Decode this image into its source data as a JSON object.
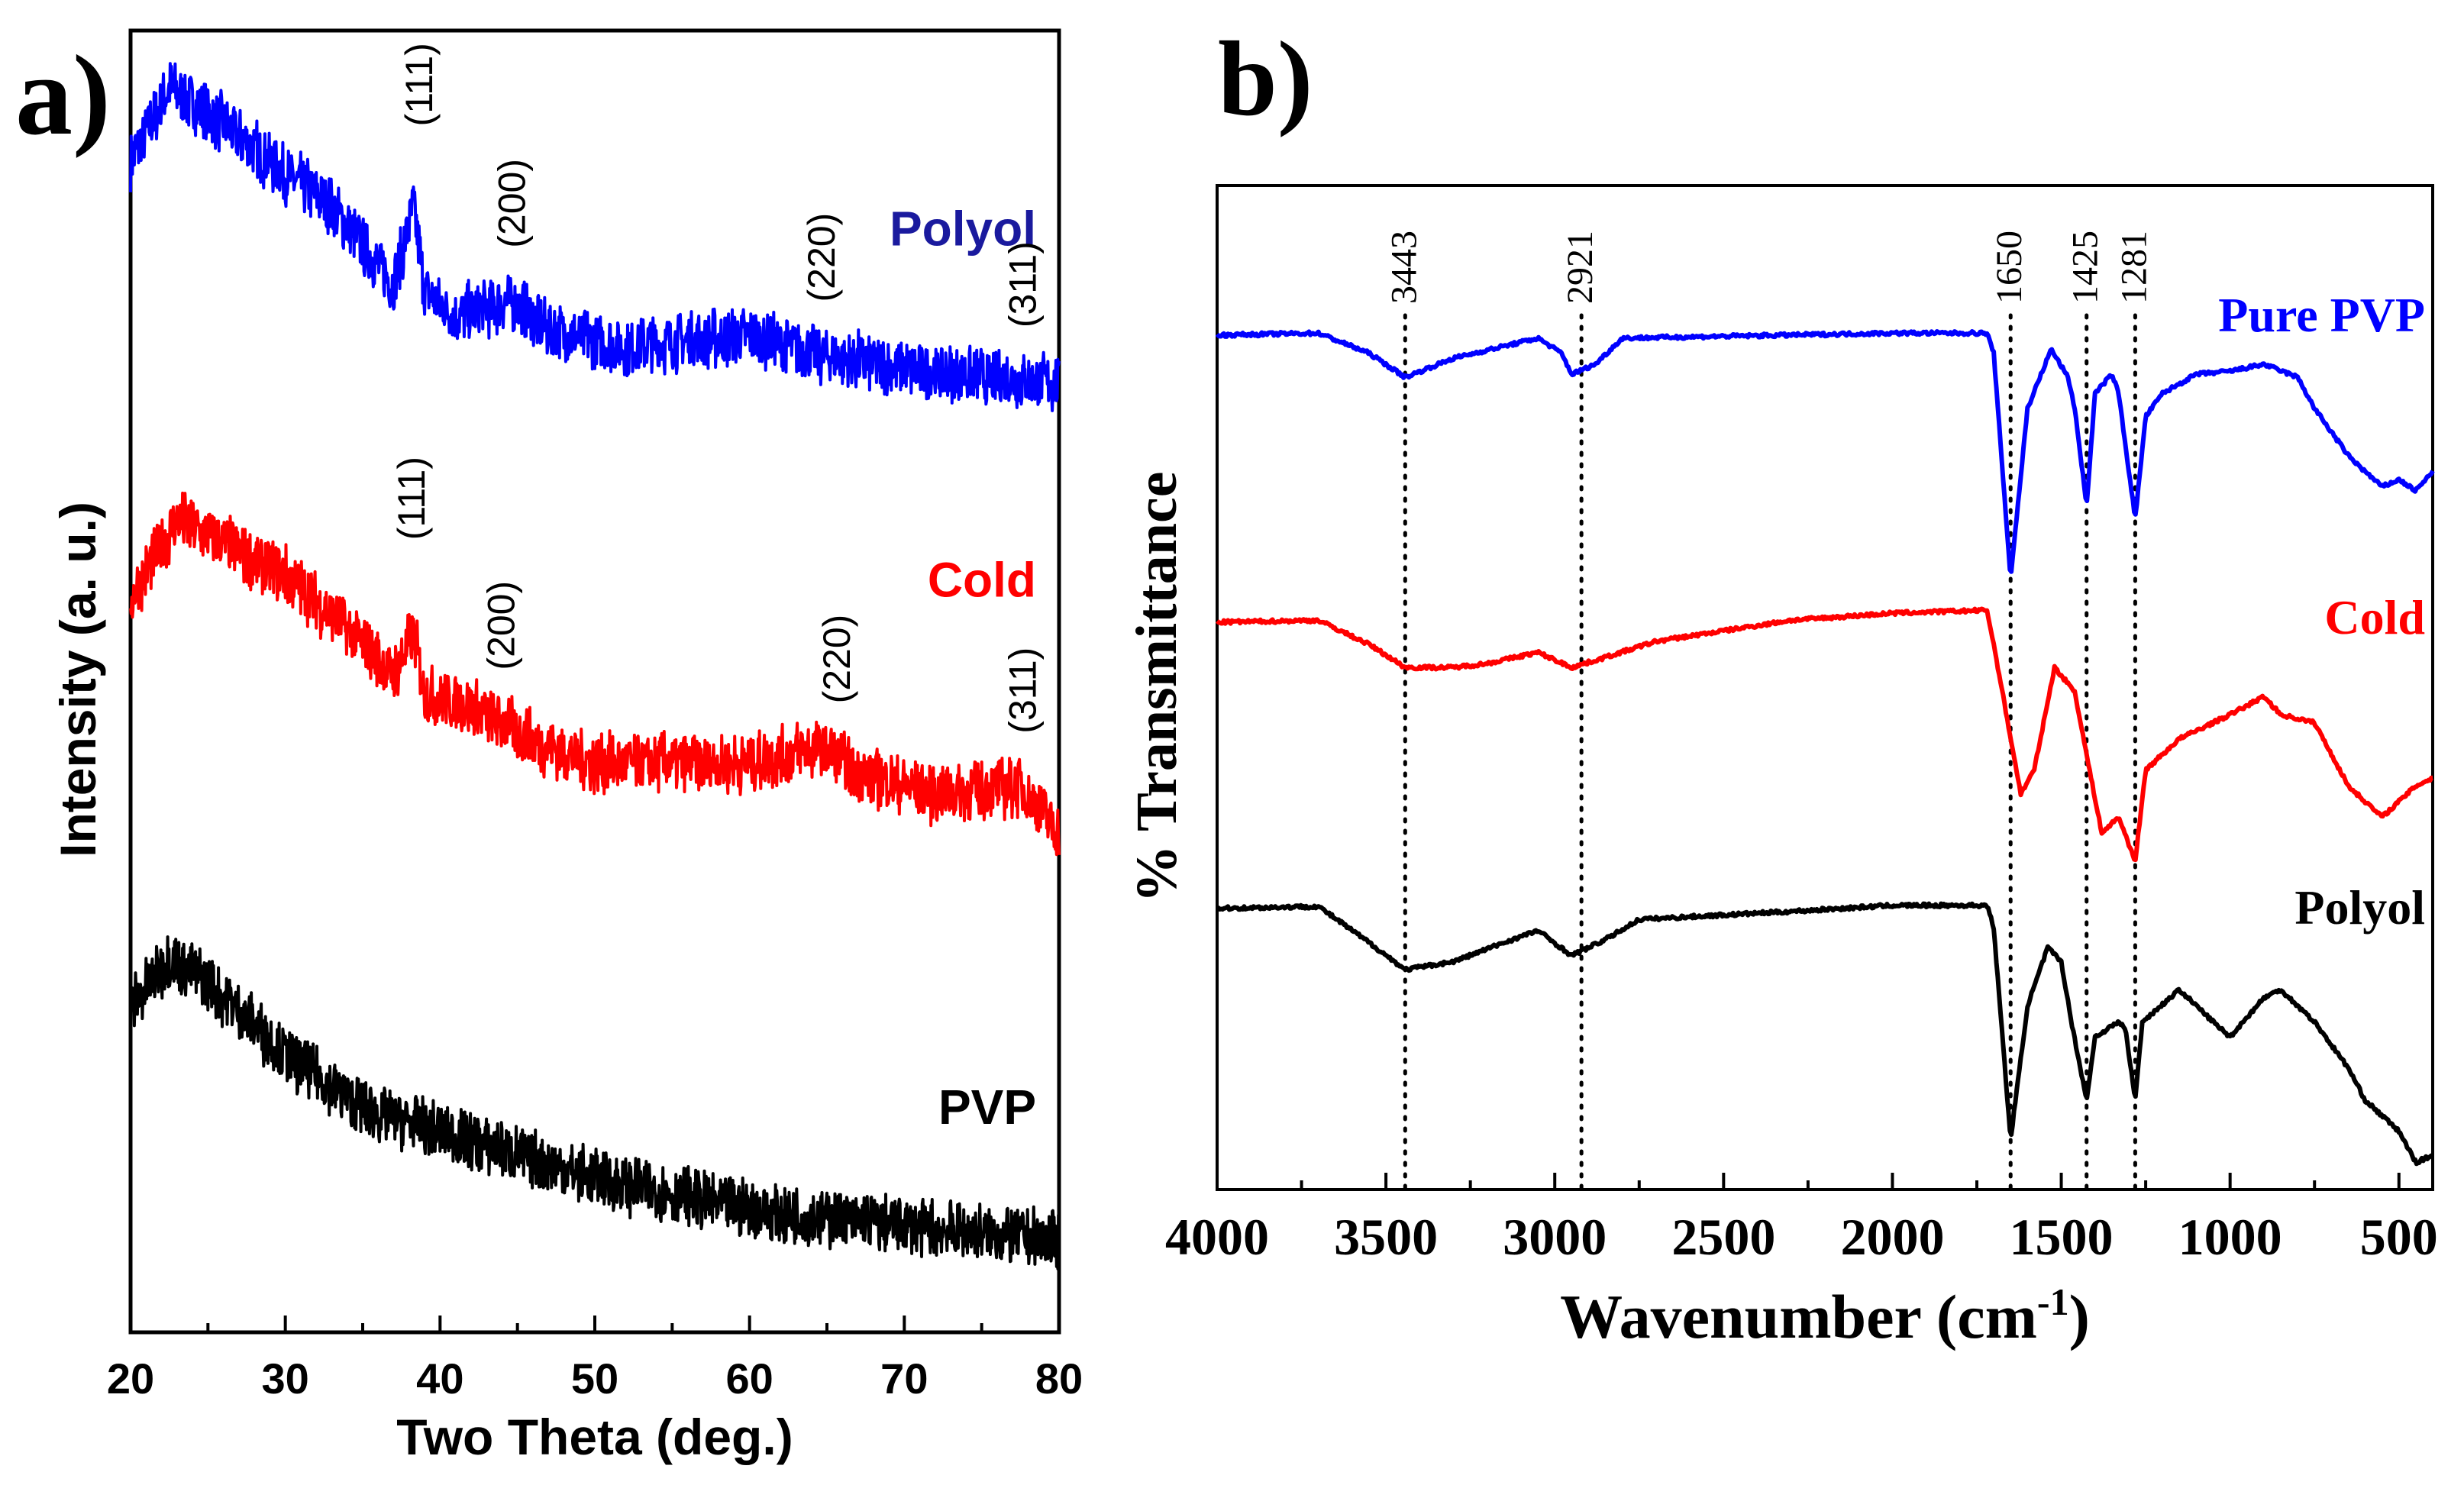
{
  "chart_data": [
    {
      "panel_label": "a)",
      "type": "line",
      "xlabel": "Two Theta (deg.)",
      "ylabel": "Intensity (a. u.)",
      "xlim": [
        20,
        80
      ],
      "ylim": [
        0,
        100
      ],
      "x_ticks": [
        "20",
        "30",
        "40",
        "50",
        "60",
        "70",
        "80"
      ],
      "y_ticks_shown": false,
      "grid": false,
      "series": [
        {
          "name": "Polyol",
          "color": "#0000ff",
          "label_color": "#1a1a9e",
          "x": [
            20,
            22.5,
            25,
            30,
            33,
            37,
            38.3,
            39,
            41,
            44.5,
            47,
            52,
            60,
            65,
            70,
            80
          ],
          "y": [
            90,
            95.5,
            93.7,
            89,
            86.5,
            80.5,
            86.5,
            80,
            78,
            79.3,
            77,
            75.7,
            76.5,
            75,
            74,
            72.9
          ],
          "peaks": [
            {
              "label": "(111)",
              "x": 38.5
            },
            {
              "label": "(200)",
              "x": 44.5
            },
            {
              "label": "(220)",
              "x": 64.5
            },
            {
              "label": "(311)",
              "x": 77.5
            }
          ]
        },
        {
          "name": "Cold",
          "color": "#ff0000",
          "label_color": "#ff0000",
          "x": [
            20,
            23,
            25,
            30,
            34,
            37,
            38.3,
            39,
            42,
            46,
            50,
            60,
            64.7,
            67,
            72,
            77.5,
            80
          ],
          "y": [
            56.4,
            62.4,
            61.2,
            58.2,
            54,
            50.4,
            53.6,
            49,
            48,
            45.5,
            43.7,
            43.7,
            45,
            43,
            41.3,
            42,
            38.3
          ],
          "peaks": [
            {
              "label": "(111)",
              "x": 38
            },
            {
              "label": "(200)",
              "x": 43.8
            },
            {
              "label": "(220)",
              "x": 65.5
            },
            {
              "label": "(311)",
              "x": 77.5
            }
          ]
        },
        {
          "name": "PVP",
          "color": "#000000",
          "label_color": "#000000",
          "x": [
            20,
            22.5,
            25,
            30,
            35,
            40,
            45,
            50,
            60,
            70,
            80
          ],
          "y": [
            25,
            28.7,
            26.9,
            21.4,
            17.2,
            15.4,
            13.6,
            11.8,
            9.4,
            8.2,
            7
          ],
          "peaks": []
        }
      ]
    },
    {
      "panel_label": "b)",
      "type": "line",
      "xlabel": "Wavenumber (cm",
      "xlabel_sup": "-1",
      "xlabel_end": ")",
      "ylabel": "% Transmittance",
      "xlim": [
        4000,
        400
      ],
      "ylim": [
        0,
        100
      ],
      "x_ticks": [
        "4000",
        "3500",
        "3000",
        "2500",
        "2000",
        "1500",
        "1000",
        "500"
      ],
      "y_ticks_shown": false,
      "grid": false,
      "reference_lines": [
        "3443",
        "2921",
        "1650",
        "1425",
        "1281"
      ],
      "series": [
        {
          "name": "Pure PVP",
          "color": "#0000ff",
          "x": [
            4000,
            3700,
            3550,
            3443,
            3300,
            3050,
            2980,
            2950,
            2880,
            2800,
            2000,
            1720,
            1700,
            1650,
            1600,
            1530,
            1480,
            1460,
            1425,
            1400,
            1350,
            1330,
            1281,
            1250,
            1200,
            1100,
            1000,
            900,
            800,
            750,
            650,
            600,
            550,
            500,
            450,
            400
          ],
          "y": [
            85.1,
            85.3,
            83.3,
            80.9,
            82.8,
            84.8,
            83.3,
            81.2,
            82.2,
            84.8,
            85.3,
            85.3,
            83.3,
            60.9,
            77.8,
            83.7,
            80.9,
            77.8,
            68.1,
            79.3,
            81.2,
            79.3,
            66.8,
            77.0,
            79.3,
            81.2,
            81.5,
            82.2,
            80.9,
            77.8,
            73.1,
            71.5,
            70.0,
            70.7,
            69.6,
            71.5
          ]
        },
        {
          "name": "Cold",
          "color": "#ff0000",
          "x": [
            4000,
            3700,
            3550,
            3443,
            3300,
            3200,
            3050,
            2950,
            2880,
            2700,
            2300,
            2000,
            1720,
            1700,
            1620,
            1580,
            1520,
            1460,
            1425,
            1380,
            1330,
            1281,
            1250,
            1150,
            1000,
            900,
            850,
            750,
            650,
            550,
            450,
            400
          ],
          "y": [
            56.5,
            56.7,
            54.3,
            52.0,
            52.0,
            52.4,
            53.5,
            52.0,
            52.7,
            54.6,
            56.7,
            57.4,
            57.7,
            54.3,
            39.4,
            41.8,
            52.0,
            49.6,
            43.3,
            35.5,
            37.1,
            32.7,
            41.8,
            44.9,
            47.3,
            49.1,
            47.3,
            46.5,
            40.2,
            37.1,
            40.2,
            41.0
          ]
        },
        {
          "name": "Polyol",
          "color": "#000000",
          "x": [
            4000,
            3700,
            3550,
            3443,
            3300,
            3150,
            3050,
            2950,
            2850,
            2750,
            2300,
            2000,
            1720,
            1700,
            1650,
            1600,
            1540,
            1500,
            1470,
            1425,
            1400,
            1330,
            1310,
            1281,
            1260,
            1150,
            1050,
            1000,
            900,
            850,
            750,
            650,
            600,
            500,
            450,
            400
          ],
          "y": [
            28.0,
            28.2,
            24.6,
            21.9,
            22.7,
            24.6,
            25.8,
            23.3,
            24.9,
            26.9,
            27.7,
            28.3,
            28.3,
            26.1,
            5.0,
            18.3,
            24.1,
            22.7,
            16.7,
            8.9,
            15.2,
            16.7,
            16.0,
            8.9,
            16.7,
            19.9,
            16.7,
            15.2,
            19.1,
            19.9,
            16.7,
            12.1,
            8.9,
            5.8,
            2.7,
            3.4
          ]
        }
      ]
    }
  ]
}
